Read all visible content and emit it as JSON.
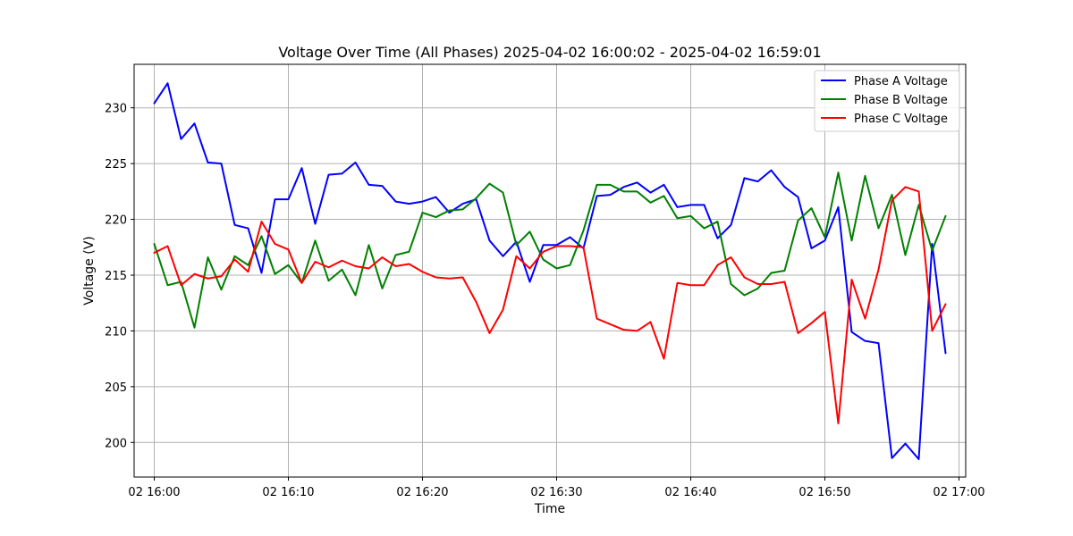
{
  "chart_data": {
    "type": "line",
    "title": "Voltage Over Time (All Phases) 2025-04-02 16:00:02 - 2025-04-02 16:59:01",
    "xlabel": "Time",
    "ylabel": "Voltage (V)",
    "x_ticks": [
      "02 16:00",
      "02 16:10",
      "02 16:20",
      "02 16:30",
      "02 16:40",
      "02 16:50",
      "02 17:00"
    ],
    "y_ticks": [
      "200",
      "205",
      "210",
      "215",
      "220",
      "225",
      "230"
    ],
    "xlim": [
      "2025-04-02 15:58:30",
      "2025-04-02 17:00:30"
    ],
    "ylim": [
      196.9,
      233.9
    ],
    "grid": true,
    "legend_position": "top-right",
    "x": [
      "2025-04-02 16:00",
      "2025-04-02 16:01",
      "2025-04-02 16:02",
      "2025-04-02 16:03",
      "2025-04-02 16:04",
      "2025-04-02 16:05",
      "2025-04-02 16:06",
      "2025-04-02 16:07",
      "2025-04-02 16:08",
      "2025-04-02 16:09",
      "2025-04-02 16:10",
      "2025-04-02 16:11",
      "2025-04-02 16:12",
      "2025-04-02 16:13",
      "2025-04-02 16:14",
      "2025-04-02 16:15",
      "2025-04-02 16:16",
      "2025-04-02 16:17",
      "2025-04-02 16:18",
      "2025-04-02 16:19",
      "2025-04-02 16:20",
      "2025-04-02 16:21",
      "2025-04-02 16:22",
      "2025-04-02 16:23",
      "2025-04-02 16:24",
      "2025-04-02 16:25",
      "2025-04-02 16:26",
      "2025-04-02 16:27",
      "2025-04-02 16:28",
      "2025-04-02 16:29",
      "2025-04-02 16:30",
      "2025-04-02 16:31",
      "2025-04-02 16:32",
      "2025-04-02 16:33",
      "2025-04-02 16:34",
      "2025-04-02 16:35",
      "2025-04-02 16:36",
      "2025-04-02 16:37",
      "2025-04-02 16:38",
      "2025-04-02 16:39",
      "2025-04-02 16:40",
      "2025-04-02 16:41",
      "2025-04-02 16:42",
      "2025-04-02 16:43",
      "2025-04-02 16:44",
      "2025-04-02 16:45",
      "2025-04-02 16:46",
      "2025-04-02 16:47",
      "2025-04-02 16:48",
      "2025-04-02 16:49",
      "2025-04-02 16:50",
      "2025-04-02 16:51",
      "2025-04-02 16:52",
      "2025-04-02 16:53",
      "2025-04-02 16:54",
      "2025-04-02 16:55",
      "2025-04-02 16:56",
      "2025-04-02 16:57",
      "2025-04-02 16:58",
      "2025-04-02 16:59"
    ],
    "series": [
      {
        "name": "Phase A Voltage",
        "color": "#0000ff",
        "values": [
          230.4,
          232.2,
          227.2,
          228.6,
          225.1,
          225.0,
          219.5,
          219.2,
          215.2,
          221.8,
          221.8,
          224.6,
          219.6,
          224.0,
          224.1,
          225.1,
          223.1,
          223.0,
          221.6,
          221.4,
          221.6,
          222.0,
          220.6,
          221.4,
          221.8,
          218.1,
          216.7,
          218.0,
          214.4,
          217.7,
          217.7,
          218.4,
          217.4,
          222.1,
          222.2,
          222.9,
          223.3,
          222.4,
          223.1,
          221.1,
          221.3,
          221.3,
          218.3,
          219.5,
          223.7,
          223.4,
          224.4,
          222.9,
          222.0,
          217.4,
          218.1,
          221.1,
          209.9,
          209.1,
          208.9,
          198.6,
          199.9,
          198.5,
          217.8,
          208.0
        ]
      },
      {
        "name": "Phase B Voltage",
        "color": "#008000",
        "values": [
          217.8,
          214.1,
          214.4,
          210.3,
          216.6,
          213.7,
          216.7,
          215.9,
          218.5,
          215.1,
          215.9,
          214.3,
          218.1,
          214.5,
          215.5,
          213.2,
          217.7,
          213.8,
          216.8,
          217.1,
          220.6,
          220.2,
          220.8,
          220.9,
          221.9,
          223.2,
          222.4,
          217.7,
          218.9,
          216.4,
          215.6,
          215.9,
          219.0,
          223.1,
          223.1,
          222.5,
          222.5,
          221.5,
          222.1,
          220.1,
          220.3,
          219.2,
          219.8,
          214.2,
          213.2,
          213.8,
          215.2,
          215.4,
          219.9,
          221.0,
          218.4,
          224.2,
          218.1,
          223.9,
          219.2,
          222.2,
          216.8,
          221.3,
          217.2,
          220.3
        ]
      },
      {
        "name": "Phase C Voltage",
        "color": "#ff0000",
        "values": [
          217.0,
          217.6,
          214.1,
          215.1,
          214.7,
          214.9,
          216.4,
          215.3,
          219.8,
          217.8,
          217.3,
          214.3,
          216.2,
          215.7,
          216.3,
          215.8,
          215.6,
          216.6,
          215.8,
          216.0,
          215.3,
          214.8,
          214.7,
          214.8,
          212.6,
          209.8,
          211.9,
          216.7,
          215.6,
          217.1,
          217.6,
          217.6,
          217.5,
          211.1,
          210.6,
          210.1,
          210.0,
          210.8,
          207.5,
          214.3,
          214.1,
          214.1,
          215.9,
          216.6,
          214.8,
          214.2,
          214.2,
          214.4,
          209.8,
          210.7,
          211.7,
          201.7,
          214.6,
          211.1,
          215.5,
          221.7,
          222.9,
          222.5,
          210.0,
          212.4
        ]
      }
    ]
  }
}
